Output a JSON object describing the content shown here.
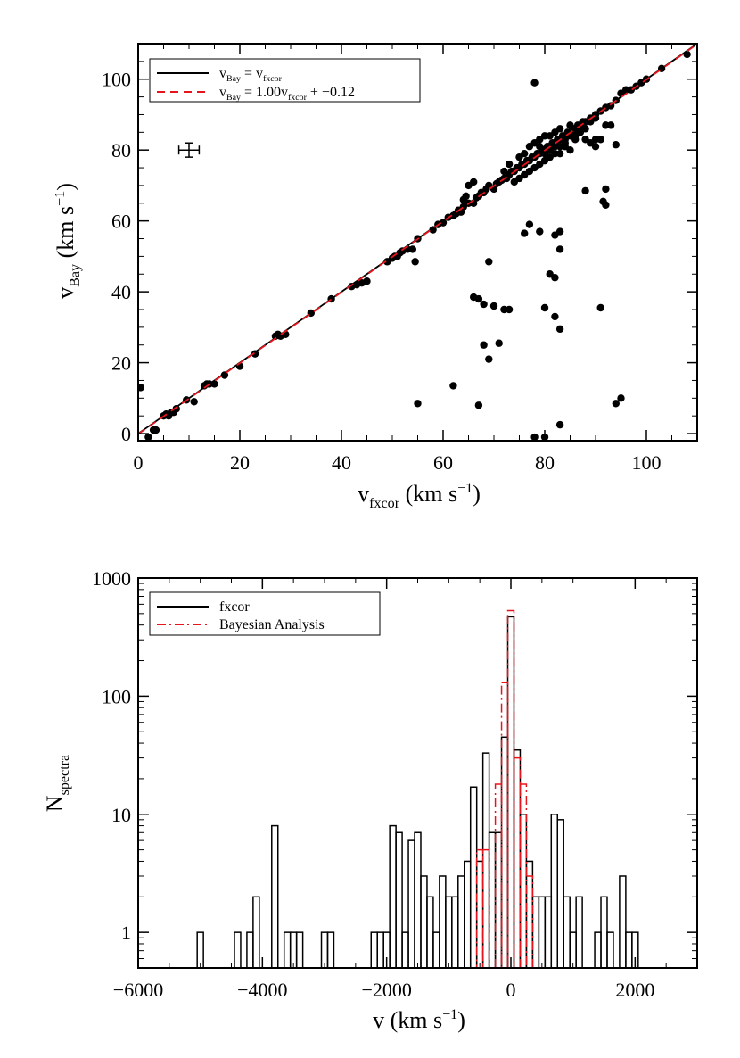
{
  "chart_data": [
    {
      "type": "scatter",
      "xlabel": {
        "main": "v",
        "sub": "fxcor",
        "unit": " (km s",
        "sup": "−1",
        "close": ")"
      },
      "ylabel": {
        "main": "v",
        "sub": "Bay",
        "unit": " (km s",
        "sup": "−1",
        "close": ")"
      },
      "xlim": [
        0,
        110
      ],
      "ylim": [
        -2,
        110
      ],
      "xticks": [
        "0",
        "20",
        "40",
        "60",
        "80",
        "100"
      ],
      "yticks": [
        "0",
        "20",
        "40",
        "60",
        "80",
        "100"
      ],
      "xtick_values": [
        0,
        20,
        40,
        60,
        80,
        100
      ],
      "ytick_values": [
        0,
        20,
        40,
        60,
        80,
        100
      ],
      "legend_position": "top-left",
      "legend": [
        {
          "lhs": "v",
          "lhs_sub": "Bay",
          "eq": " = v",
          "rhs_sub": "fxcor",
          "tail": "",
          "color": "#000000",
          "dash": "solid"
        },
        {
          "lhs": "v",
          "lhs_sub": "Bay",
          "eq": " = 1.00v",
          "rhs_sub": "fxcor",
          "tail": " + −0.12",
          "color": "#e8141c",
          "dash": "dashed"
        }
      ],
      "lines": [
        {
          "slope": 1.0,
          "intercept": 0.0,
          "color": "#000000",
          "dash": "solid"
        },
        {
          "slope": 1.0,
          "intercept": -0.12,
          "color": "#e8141c",
          "dash": "dashed"
        }
      ],
      "errorbar": {
        "x": 10,
        "y": 80,
        "xerr": 2,
        "yerr": 2
      },
      "points": [
        [
          0.5,
          13
        ],
        [
          2,
          -1
        ],
        [
          3,
          1
        ],
        [
          3.5,
          1
        ],
        [
          5,
          5
        ],
        [
          5.5,
          5.5
        ],
        [
          6,
          5
        ],
        [
          6.5,
          6
        ],
        [
          7,
          6
        ],
        [
          7.5,
          7
        ],
        [
          9.5,
          9.5
        ],
        [
          11,
          9
        ],
        [
          13,
          13.5
        ],
        [
          13.5,
          14
        ],
        [
          14,
          14
        ],
        [
          15,
          14
        ],
        [
          17,
          16.5
        ],
        [
          20,
          19
        ],
        [
          23,
          22.5
        ],
        [
          27,
          27.5
        ],
        [
          27.5,
          28
        ],
        [
          28,
          27.5
        ],
        [
          29,
          28
        ],
        [
          34,
          34
        ],
        [
          38,
          38
        ],
        [
          42,
          41.5
        ],
        [
          43,
          42
        ],
        [
          44,
          42.5
        ],
        [
          45,
          43
        ],
        [
          49,
          48.5
        ],
        [
          50,
          49.5
        ],
        [
          50.5,
          50
        ],
        [
          51,
          50
        ],
        [
          51.5,
          51
        ],
        [
          52,
          51.5
        ],
        [
          53,
          52
        ],
        [
          54,
          52
        ],
        [
          55,
          55
        ],
        [
          54.5,
          48.5
        ],
        [
          55,
          8.5
        ],
        [
          58,
          57.5
        ],
        [
          59,
          59
        ],
        [
          60,
          59.5
        ],
        [
          61,
          61
        ],
        [
          62,
          61.5
        ],
        [
          62.5,
          62
        ],
        [
          63,
          63
        ],
        [
          63.5,
          62.5
        ],
        [
          64,
          64
        ],
        [
          65,
          65
        ],
        [
          64.5,
          67
        ],
        [
          66,
          65
        ],
        [
          66.5,
          66.5
        ],
        [
          67,
          67
        ],
        [
          67.5,
          68
        ],
        [
          68,
          68
        ],
        [
          68.5,
          69
        ],
        [
          69,
          70
        ],
        [
          70,
          69
        ],
        [
          70.5,
          70.5
        ],
        [
          71,
          71
        ],
        [
          71.5,
          71.5
        ],
        [
          72,
          72
        ],
        [
          72.5,
          72
        ],
        [
          73,
          73
        ],
        [
          73.5,
          74
        ],
        [
          74,
          74
        ],
        [
          74.5,
          75
        ],
        [
          75,
          75
        ],
        [
          75.5,
          76
        ],
        [
          76,
          76
        ],
        [
          76.5,
          77
        ],
        [
          77,
          77
        ],
        [
          77.5,
          78
        ],
        [
          78,
          78
        ],
        [
          78.5,
          79
        ],
        [
          79,
          79
        ],
        [
          79.5,
          80
        ],
        [
          80,
          80
        ],
        [
          80.5,
          81
        ],
        [
          81,
          81
        ],
        [
          81.5,
          82
        ],
        [
          82,
          82
        ],
        [
          82.5,
          83
        ],
        [
          83,
          83
        ],
        [
          83.5,
          84
        ],
        [
          84,
          84
        ],
        [
          84.5,
          85
        ],
        [
          85,
          85
        ],
        [
          85.5,
          86
        ],
        [
          86,
          86
        ],
        [
          86.5,
          87
        ],
        [
          87,
          87
        ],
        [
          87.5,
          88
        ],
        [
          88,
          88
        ],
        [
          89,
          89
        ],
        [
          90,
          90
        ],
        [
          91,
          91
        ],
        [
          92,
          92
        ],
        [
          93,
          92.5
        ],
        [
          94,
          94
        ],
        [
          95,
          96
        ],
        [
          96,
          97
        ],
        [
          97,
          97
        ],
        [
          98,
          98
        ],
        [
          99,
          99
        ],
        [
          100,
          100
        ],
        [
          103,
          103
        ],
        [
          108,
          107
        ],
        [
          76,
          79
        ],
        [
          77,
          74
        ],
        [
          78,
          82
        ],
        [
          79,
          76
        ],
        [
          80,
          84
        ],
        [
          81,
          78
        ],
        [
          82,
          85
        ],
        [
          83,
          79
        ],
        [
          84,
          82
        ],
        [
          85,
          80
        ],
        [
          86,
          83
        ],
        [
          87,
          85
        ],
        [
          75,
          78
        ],
        [
          74,
          71
        ],
        [
          73,
          76
        ],
        [
          72,
          74
        ],
        [
          79,
          83
        ],
        [
          80,
          77
        ],
        [
          81,
          84
        ],
        [
          82,
          79
        ],
        [
          83,
          86
        ],
        [
          84,
          81
        ],
        [
          85,
          87
        ],
        [
          86,
          84
        ],
        [
          77,
          81
        ],
        [
          78,
          75
        ],
        [
          76,
          73
        ],
        [
          75,
          72
        ],
        [
          79,
          81
        ],
        [
          80,
          79
        ],
        [
          81,
          80
        ],
        [
          82,
          81
        ],
        [
          83,
          81
        ],
        [
          84,
          83
        ],
        [
          85,
          84
        ],
        [
          86,
          85
        ],
        [
          87,
          86
        ],
        [
          88,
          86
        ],
        [
          89,
          88
        ],
        [
          90,
          89
        ],
        [
          78,
          99
        ],
        [
          76,
          56.5
        ],
        [
          77,
          59
        ],
        [
          79,
          57
        ],
        [
          69,
          48.5
        ],
        [
          68,
          36.5
        ],
        [
          67,
          38
        ],
        [
          66,
          38.5
        ],
        [
          70,
          36
        ],
        [
          72,
          35
        ],
        [
          73,
          35
        ],
        [
          80,
          35.5
        ],
        [
          82,
          33
        ],
        [
          81,
          45
        ],
        [
          82,
          44
        ],
        [
          83,
          52
        ],
        [
          83,
          57
        ],
        [
          82,
          56
        ],
        [
          68,
          25
        ],
        [
          69,
          21
        ],
        [
          71,
          25.5
        ],
        [
          62,
          13.5
        ],
        [
          67,
          8
        ],
        [
          78,
          -1
        ],
        [
          80,
          -1
        ],
        [
          83,
          2.5
        ],
        [
          83,
          29.5
        ],
        [
          88,
          68.5
        ],
        [
          92,
          69
        ],
        [
          90,
          81
        ],
        [
          91,
          35.5
        ],
        [
          92,
          64.5
        ],
        [
          91.5,
          65.5
        ],
        [
          94,
          81.5
        ],
        [
          94,
          8.5
        ],
        [
          95,
          10
        ],
        [
          88,
          83
        ],
        [
          89,
          82
        ],
        [
          90,
          83
        ],
        [
          91,
          83
        ],
        [
          92,
          87
        ],
        [
          93,
          87
        ],
        [
          65,
          70
        ],
        [
          66,
          71
        ],
        [
          64,
          66
        ]
      ]
    },
    {
      "type": "histogram",
      "xlabel": {
        "main": "v (km s",
        "sup": "−1",
        "close": ")"
      },
      "ylabel": {
        "main": "N",
        "sub": "spectra"
      },
      "xlim": [
        -6000,
        3000
      ],
      "ylim": [
        0.5,
        1000
      ],
      "yscale": "log",
      "xticks": [
        "−6000",
        "−4000",
        "−2000",
        "0",
        "2000"
      ],
      "xtick_values": [
        -6000,
        -4000,
        -2000,
        0,
        2000
      ],
      "yticks": [
        "1",
        "10",
        "100",
        "1000"
      ],
      "ytick_values": [
        1,
        10,
        100,
        1000
      ],
      "legend_position": "top-left",
      "legend": [
        {
          "name": "fxcor",
          "color": "#000000",
          "dash": "solid"
        },
        {
          "name": "Bayesian Analysis",
          "color": "#e8141c",
          "dash": "dashdot"
        }
      ],
      "bin_width": 100,
      "series": [
        {
          "name": "fxcor",
          "color": "#000000",
          "dash": "solid",
          "bins": [
            [
              -5000,
              1
            ],
            [
              -4400,
              1
            ],
            [
              -4200,
              1
            ],
            [
              -4100,
              2
            ],
            [
              -3800,
              8
            ],
            [
              -3600,
              1
            ],
            [
              -3500,
              1
            ],
            [
              -3400,
              1
            ],
            [
              -3000,
              1
            ],
            [
              -2900,
              1
            ],
            [
              -2200,
              1
            ],
            [
              -2100,
              1
            ],
            [
              -2000,
              1
            ],
            [
              -1900,
              8
            ],
            [
              -1800,
              7
            ],
            [
              -1700,
              1
            ],
            [
              -1600,
              6
            ],
            [
              -1500,
              7
            ],
            [
              -1400,
              3
            ],
            [
              -1300,
              2
            ],
            [
              -1200,
              1
            ],
            [
              -1100,
              3
            ],
            [
              -1000,
              2
            ],
            [
              -900,
              2
            ],
            [
              -800,
              3
            ],
            [
              -700,
              4
            ],
            [
              -600,
              17
            ],
            [
              -500,
              4
            ],
            [
              -400,
              33
            ],
            [
              -300,
              7
            ],
            [
              -200,
              7
            ],
            [
              -100,
              45
            ],
            [
              0,
              470
            ],
            [
              100,
              35
            ],
            [
              200,
              10
            ],
            [
              300,
              4
            ],
            [
              400,
              2
            ],
            [
              500,
              2
            ],
            [
              600,
              2
            ],
            [
              700,
              10
            ],
            [
              800,
              9
            ],
            [
              900,
              2
            ],
            [
              1000,
              1
            ],
            [
              1100,
              2
            ],
            [
              1400,
              1
            ],
            [
              1500,
              2
            ],
            [
              1600,
              1
            ],
            [
              1800,
              3
            ],
            [
              1900,
              1
            ],
            [
              2000,
              1
            ]
          ]
        },
        {
          "name": "Bayesian Analysis",
          "color": "#e8141c",
          "dash": "dashdot",
          "bins": [
            [
              -500,
              5
            ],
            [
              -400,
              5
            ],
            [
              -200,
              18
            ],
            [
              -100,
              130
            ],
            [
              0,
              530
            ],
            [
              100,
              30
            ],
            [
              200,
              18
            ],
            [
              300,
              3
            ]
          ]
        }
      ]
    }
  ]
}
